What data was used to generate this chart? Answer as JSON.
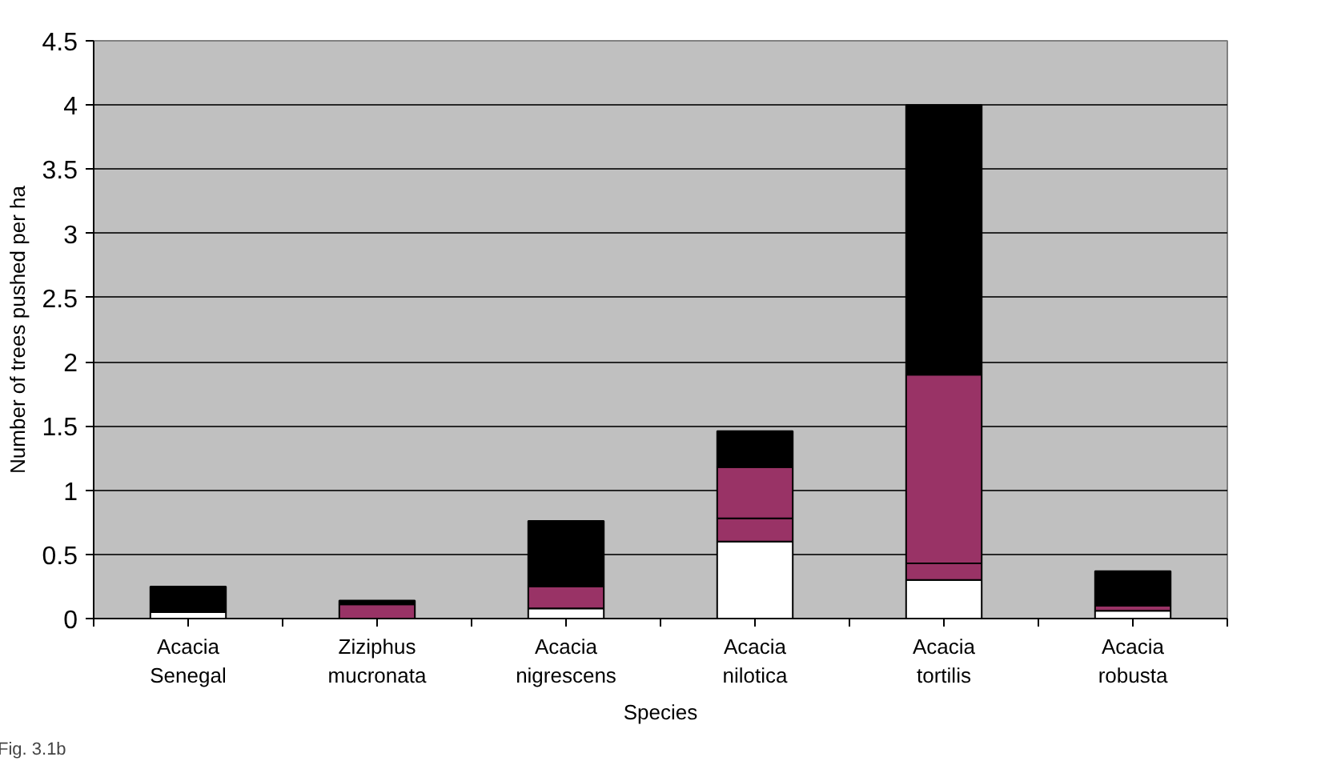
{
  "chart_data": {
    "type": "bar",
    "stacked": true,
    "xlabel": "Species",
    "ylabel": "Number of trees pushed per ha",
    "categories": [
      "Acacia Senegal",
      "Ziziphus mucronata",
      "Acacia nigrescens",
      "Acacia nilotica",
      "Acacia tortilis",
      "Acacia robusta"
    ],
    "series": [
      {
        "color": "#ffffff",
        "values": [
          0.05,
          0,
          0.08,
          0.6,
          0.3,
          0.06
        ]
      },
      {
        "color": "#993366",
        "values": [
          0,
          0,
          0,
          0.18,
          0.13,
          0.04
        ]
      },
      {
        "color": "#993366",
        "values": [
          0,
          0.11,
          0.17,
          0.4,
          1.47,
          0
        ]
      },
      {
        "color": "#000000",
        "values": [
          0.2,
          0.03,
          0.51,
          0.28,
          2.1,
          0.27
        ]
      }
    ],
    "ylim": [
      0,
      4.5
    ],
    "yticks": [
      0,
      0.5,
      1,
      1.5,
      2,
      2.5,
      3,
      3.5,
      4,
      4.5
    ],
    "grid": "y",
    "annotations": [
      "Fig. 3.1b"
    ]
  }
}
